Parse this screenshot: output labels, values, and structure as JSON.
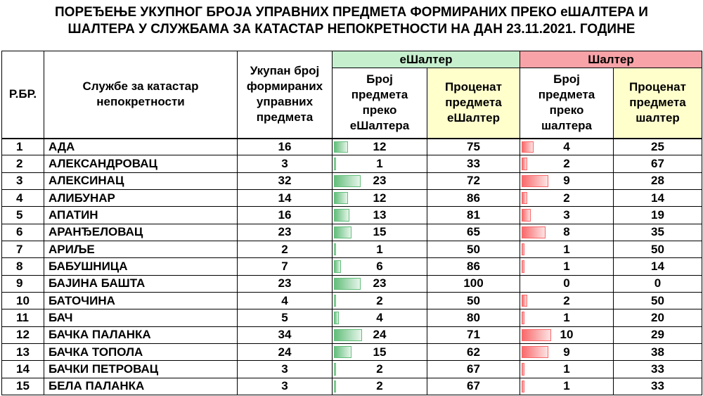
{
  "title_line1": "ПОРЕЂЕЊЕ УКУПНОГ БРОЈА УПРАВНИХ ПРЕДМЕТА ФОРМИРАНИХ ПРЕКО еШАЛТЕРА И",
  "title_line2": "ШАЛТЕРА У СЛУЖБАМА ЗА КАТАСТАР НЕПОКРЕТНОСТИ НА ДАН 23.11.2021. ГОДИНЕ",
  "headers": {
    "rb": "Р.БР.",
    "service": "Службе за катастар непокретности",
    "total": "Укупан број формираних управних предмета",
    "eshalter_group": "еШалтер",
    "shalter_group": "Шалтер",
    "e_count": "Број предмета преко еШалтера",
    "e_pct": "Проценат предмета еШалтер",
    "s_count": "Број предмета преко шалтера",
    "s_pct": "Проценат предмета шалтер"
  },
  "colors": {
    "green_header": "#c6efce",
    "red_header": "#f8a3a8",
    "yellow_header": "#ffffcc",
    "green_bar": "#63be7b",
    "red_bar": "#f8696b"
  },
  "rows": [
    {
      "rb": "1",
      "name": "АДА",
      "total": "16",
      "e_count": "12",
      "e_pct": "75",
      "s_count": "4",
      "s_pct": "25"
    },
    {
      "rb": "2",
      "name": "АЛЕКСАНДРОВАЦ",
      "total": "3",
      "e_count": "1",
      "e_pct": "33",
      "s_count": "2",
      "s_pct": "67"
    },
    {
      "rb": "3",
      "name": "АЛЕКСИНАЦ",
      "total": "32",
      "e_count": "23",
      "e_pct": "72",
      "s_count": "9",
      "s_pct": "28"
    },
    {
      "rb": "4",
      "name": "АЛИБУНАР",
      "total": "14",
      "e_count": "12",
      "e_pct": "86",
      "s_count": "2",
      "s_pct": "14"
    },
    {
      "rb": "5",
      "name": "АПАТИН",
      "total": "16",
      "e_count": "13",
      "e_pct": "81",
      "s_count": "3",
      "s_pct": "19"
    },
    {
      "rb": "6",
      "name": "АРАНЂЕЛОВАЦ",
      "total": "23",
      "e_count": "15",
      "e_pct": "65",
      "s_count": "8",
      "s_pct": "35"
    },
    {
      "rb": "7",
      "name": "АРИЉЕ",
      "total": "2",
      "e_count": "1",
      "e_pct": "50",
      "s_count": "1",
      "s_pct": "50"
    },
    {
      "rb": "8",
      "name": "БАБУШНИЦА",
      "total": "7",
      "e_count": "6",
      "e_pct": "86",
      "s_count": "1",
      "s_pct": "14"
    },
    {
      "rb": "9",
      "name": "БАЈИНА БАШТА",
      "total": "23",
      "e_count": "23",
      "e_pct": "100",
      "s_count": "0",
      "s_pct": "0"
    },
    {
      "rb": "10",
      "name": "БАТОЧИНА",
      "total": "4",
      "e_count": "2",
      "e_pct": "50",
      "s_count": "2",
      "s_pct": "50"
    },
    {
      "rb": "11",
      "name": "БАЧ",
      "total": "5",
      "e_count": "4",
      "e_pct": "80",
      "s_count": "1",
      "s_pct": "20"
    },
    {
      "rb": "12",
      "name": "БАЧКА ПАЛАНКА",
      "total": "34",
      "e_count": "24",
      "e_pct": "71",
      "s_count": "10",
      "s_pct": "29"
    },
    {
      "rb": "13",
      "name": "БАЧКА ТОПОЛА",
      "total": "24",
      "e_count": "15",
      "e_pct": "62",
      "s_count": "9",
      "s_pct": "38"
    },
    {
      "rb": "14",
      "name": "БАЧКИ ПЕТРОВАЦ",
      "total": "3",
      "e_count": "2",
      "e_pct": "67",
      "s_count": "1",
      "s_pct": "33"
    },
    {
      "rb": "15",
      "name": "БЕЛА ПАЛАНКА",
      "total": "3",
      "e_count": "2",
      "e_pct": "67",
      "s_count": "1",
      "s_pct": "33"
    }
  ]
}
